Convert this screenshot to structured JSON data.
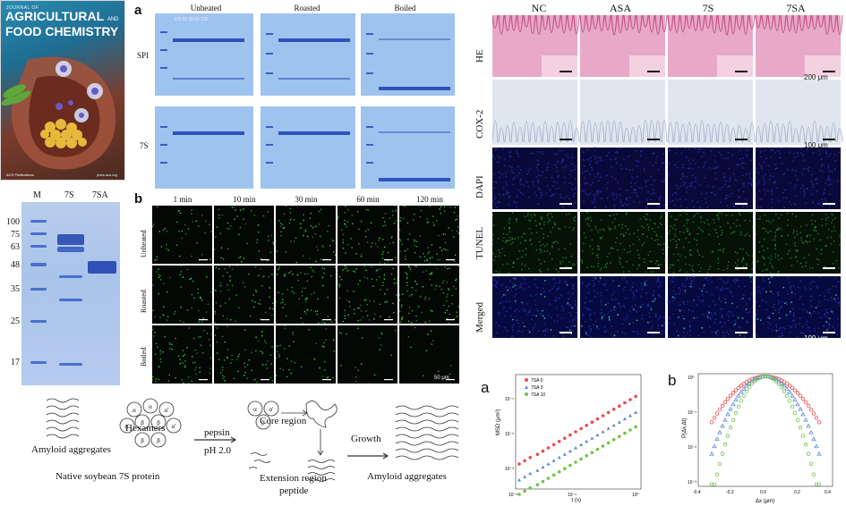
{
  "cover": {
    "journal_prefix": "JOURNAL OF",
    "title_line1": "AGRICULTURAL",
    "title_and": "AND",
    "title_line2": "FOOD CHEMISTRY",
    "publisher": "ACS Publications",
    "site": "pubs.acs.org"
  },
  "sds_gel": {
    "lanes": [
      "M",
      "7S",
      "7SA"
    ],
    "markers": [
      "100",
      "75",
      "63",
      "48",
      "35",
      "25",
      "17"
    ]
  },
  "panel_a": {
    "label": "a",
    "conditions": [
      "Unheated",
      "Roasted",
      "Boiled"
    ],
    "rows": [
      "SPI",
      "7S"
    ],
    "lane_ticks": "0    5   10   30   60  120"
  },
  "panel_b": {
    "label": "b",
    "times": [
      "1 min",
      "10 min",
      "30 min",
      "60 min",
      "120 min"
    ],
    "rows": [
      "Unheated",
      "Roasted",
      "Boiled"
    ],
    "scale": "50 μm"
  },
  "histology": {
    "columns": [
      "NC",
      "ASA",
      "7S",
      "7SA"
    ],
    "rows": [
      "HE",
      "COX-2",
      "DAPI",
      "TUNEL",
      "Merged"
    ],
    "scale_he": "200 μm",
    "scale_cox": "100 μm",
    "scale_merged": "100 μm"
  },
  "schematic": {
    "amyloid_left": "Amyloid aggregates",
    "hexamers": "Hexamers",
    "native": "Native soybean 7S protein",
    "pepsin": "pepsin",
    "ph": "pH 2.0",
    "core": "Core region",
    "extension": "Extension region",
    "peptide": "peptide",
    "growth": "Growth",
    "amyloid_right": "Amyloid aggregates",
    "subunit_alpha": "α",
    "subunit_alpha_prime": "α'",
    "subunit_beta": "β"
  },
  "plot_a": {
    "label": "a",
    "ylabel": "MSD (μm²)",
    "xlabel": "τ (s)",
    "legend": [
      "7SA 0",
      "7SA 3",
      "7SA 10"
    ],
    "colors": [
      "#e84b4b",
      "#5a86d8",
      "#6ec44a"
    ],
    "xticks": [
      "10⁻²",
      "10⁻¹",
      "10⁰"
    ],
    "yticks": [
      "10⁻¹",
      "10⁻²",
      "10⁻³"
    ]
  },
  "plot_b": {
    "label": "b",
    "ylabel": "P(Δx,Δt)",
    "xlabel": "Δx (μm)",
    "xticks": [
      "-0.4",
      "-0.2",
      "0.0",
      "0.2",
      "0.4"
    ],
    "yticks": [
      "10⁰",
      "10⁻¹",
      "10⁻²",
      "10⁻³"
    ]
  }
}
